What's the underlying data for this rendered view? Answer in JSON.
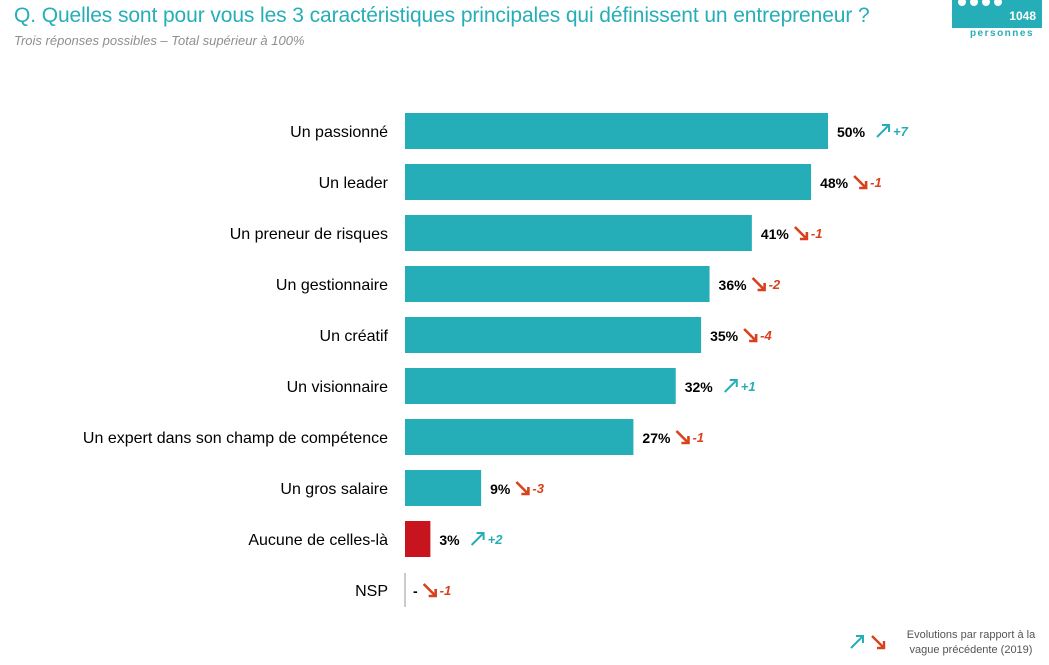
{
  "header": {
    "title": "Q. Quelles sont pour vous les 3 caractéristiques principales qui définissent un entrepreneur ?",
    "subtitle": "Trois réponses possibles – Total supérieur à 100%",
    "sample_count": "1048",
    "sample_unit": "personnes"
  },
  "legend": {
    "text": "Evolutions par rapport à la vague précédente (2019)"
  },
  "colors": {
    "bar": "#26aeb8",
    "highlight_bar": "#c8141e",
    "up": "#26aeb8",
    "down": "#d9401c",
    "text": "#000000"
  },
  "chart_data": {
    "type": "bar",
    "orientation": "horizontal",
    "categories": [
      "Un passionné",
      "Un leader",
      "Un preneur de risques",
      "Un gestionnaire",
      "Un créatif",
      "Un visionnaire",
      "Un expert dans son champ de compétence",
      "Un gros salaire",
      "Aucune de celles-là",
      "NSP"
    ],
    "values": [
      50,
      48,
      41,
      36,
      35,
      32,
      27,
      9,
      3,
      null
    ],
    "value_labels": [
      "50%",
      "48%",
      "41%",
      "36%",
      "35%",
      "32%",
      "27%",
      "9%",
      "3%",
      "-"
    ],
    "changes": [
      "+7",
      "-1",
      "-1",
      "-2",
      "-4",
      "+1",
      "-1",
      "-3",
      "+2",
      "-1"
    ],
    "change_directions": [
      "up",
      "down",
      "down",
      "down",
      "down",
      "up",
      "down",
      "down",
      "up",
      "down"
    ],
    "bar_colors": [
      "#26aeb8",
      "#26aeb8",
      "#26aeb8",
      "#26aeb8",
      "#26aeb8",
      "#26aeb8",
      "#26aeb8",
      "#26aeb8",
      "#c8141e",
      "#26aeb8"
    ],
    "xlim": [
      0,
      50
    ]
  }
}
